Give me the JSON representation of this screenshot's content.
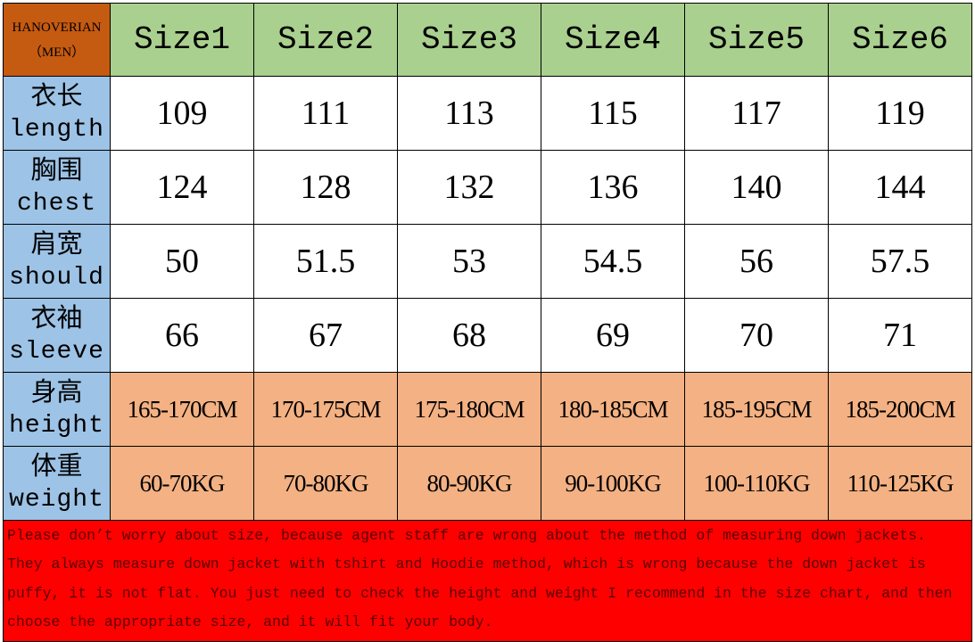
{
  "header": {
    "brand": "HANOVERIAN",
    "sub": "（MEN）",
    "sizes": [
      "Size1",
      "Size2",
      "Size3",
      "Size4",
      "Size5",
      "Size6"
    ]
  },
  "rows": [
    {
      "zh": "衣长",
      "en": "length",
      "values": [
        "109",
        "111",
        "113",
        "115",
        "117",
        "119"
      ]
    },
    {
      "zh": "胸围",
      "en": "chest",
      "values": [
        "124",
        "128",
        "132",
        "136",
        "140",
        "144"
      ]
    },
    {
      "zh": "肩宽",
      "en": "should",
      "values": [
        "50",
        "51.5",
        "53",
        "54.5",
        "56",
        "57.5"
      ]
    },
    {
      "zh": "衣袖",
      "en": "sleeve",
      "values": [
        "66",
        "67",
        "68",
        "69",
        "70",
        "71"
      ]
    },
    {
      "zh": "身高",
      "en": "height",
      "values": [
        "165-170CM",
        "170-175CM",
        "175-180CM",
        "180-185CM",
        "185-195CM",
        "185-200CM"
      ]
    },
    {
      "zh": "体重",
      "en": "weight",
      "values": [
        "60-70KG",
        "70-80KG",
        "80-90KG",
        "90-100KG",
        "100-110KG",
        "110-125KG"
      ]
    }
  ],
  "note": [
    "Please don’t worry about size, because agent staff are wrong about the method of measuring down jackets.",
    "They always measure down jacket with tshirt and Hoodie method, which is wrong because the down jacket is",
    "puffy, it is not flat. You just need to check the height and weight I recommend in the size chart, and then",
    "choose the appropriate size, and it will fit your body."
  ],
  "colors": {
    "brand": "#c55a11",
    "size_header": "#a9d08e",
    "row_label": "#9dc3e6",
    "height_weight": "#f4b183",
    "note": "#ff0000"
  }
}
